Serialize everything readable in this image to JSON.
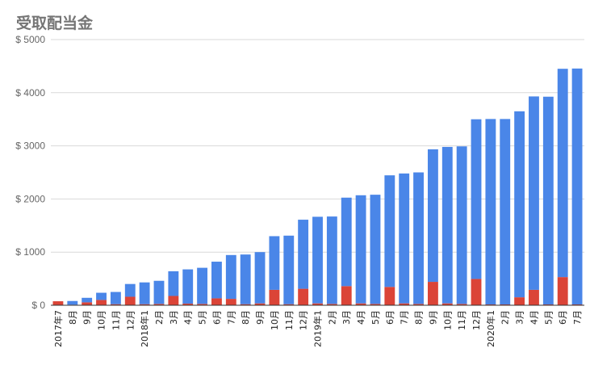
{
  "chart_data": {
    "type": "bar",
    "title": "受取配当金",
    "stacked": true,
    "ylim": [
      0,
      5000
    ],
    "yticks": [
      0,
      1000,
      2000,
      3000,
      4000,
      5000
    ],
    "ytick_labels": [
      "$ 0",
      "$ 1000",
      "$ 2000",
      "$ 3000",
      "$ 4000",
      "$ 5000"
    ],
    "grid": true,
    "legend": "none",
    "categories": [
      "2017年7",
      "8月",
      "9月",
      "10月",
      "11月",
      "12月",
      "2018年1",
      "2月",
      "3月",
      "4月",
      "5月",
      "6月",
      "7月",
      "8月",
      "9月",
      "10月",
      "11月",
      "12月",
      "2019年1",
      "2月",
      "3月",
      "4月",
      "5月",
      "6月",
      "7月",
      "8月",
      "9月",
      "10月",
      "11月",
      "12月",
      "2020年1",
      "2月",
      "3月",
      "4月",
      "5月",
      "6月",
      "7月"
    ],
    "series": [
      {
        "color": "#db4437",
        "values": [
          75,
          10,
          55,
          100,
          20,
          160,
          20,
          25,
          175,
          30,
          25,
          130,
          120,
          20,
          35,
          290,
          20,
          310,
          35,
          25,
          360,
          35,
          25,
          345,
          35,
          25,
          440,
          35,
          25,
          495,
          15,
          15,
          150,
          290,
          15,
          530,
          15
        ]
      },
      {
        "color": "#4a86e8",
        "values": [
          0,
          70,
          85,
          135,
          230,
          240,
          410,
          435,
          465,
          645,
          680,
          690,
          825,
          935,
          965,
          1010,
          1290,
          1300,
          1630,
          1645,
          1665,
          2035,
          2055,
          2100,
          2445,
          2475,
          2495,
          2945,
          2965,
          3005,
          3490,
          3490,
          3500,
          3640,
          3910,
          3920,
          4440
        ]
      }
    ]
  }
}
